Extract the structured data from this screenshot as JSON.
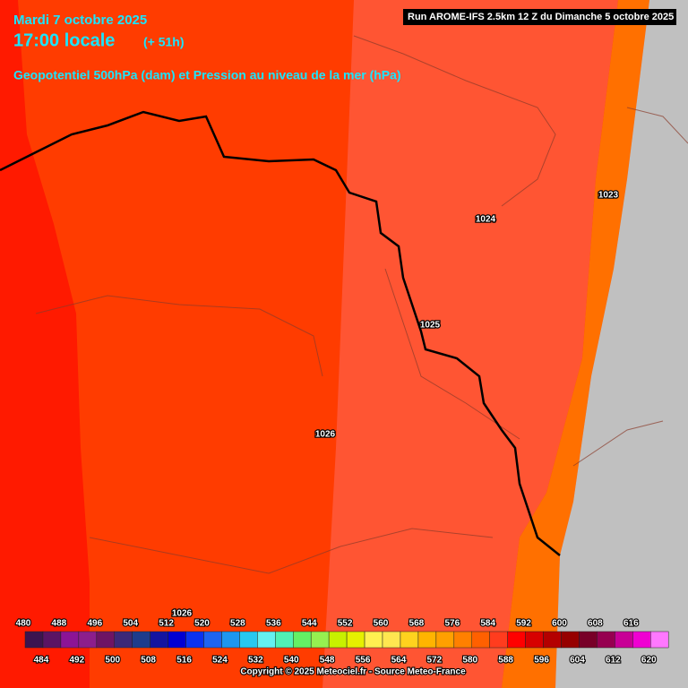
{
  "header": {
    "date": "Mardi 7 octobre 2025",
    "time": "17:00 locale",
    "lead": "(+ 51h)",
    "title": "Geopotentiel 500hPa (dam) et Pression au niveau de la mer (hPa)",
    "run": "Run AROME-IFS 2.5km 12 Z du Dimanche 5 octobre 2025"
  },
  "isobar_labels": [
    1023,
    1024,
    1025,
    1026,
    1026
  ],
  "scale": {
    "values": [
      480,
      484,
      488,
      492,
      496,
      500,
      504,
      508,
      512,
      516,
      520,
      524,
      528,
      532,
      536,
      540,
      544,
      548,
      552,
      556,
      560,
      564,
      568,
      572,
      576,
      580,
      584,
      588,
      592,
      596,
      600,
      604,
      608,
      612,
      616,
      620
    ],
    "colors": [
      "#3c1450",
      "#5a1464",
      "#8c1496",
      "#8c1e8c",
      "#6e1464",
      "#3c2878",
      "#1e3c8c",
      "#1414a0",
      "#0000d2",
      "#0a32f0",
      "#1e64f0",
      "#1e96f0",
      "#28c8f0",
      "#64f0f0",
      "#50f0b4",
      "#64f064",
      "#96f050",
      "#c8f000",
      "#e6f000",
      "#fff050",
      "#ffe650",
      "#ffd21e",
      "#ffb400",
      "#ffa000",
      "#ff8000",
      "#ff6000",
      "#ff3c1e",
      "#ff0000",
      "#d70000",
      "#b40000",
      "#960000",
      "#780028",
      "#960050",
      "#c80096",
      "#f000d2",
      "#ff78ff"
    ]
  },
  "copyright": "Copyright © 2025 Meteociel.fr - Source Meteo-France"
}
